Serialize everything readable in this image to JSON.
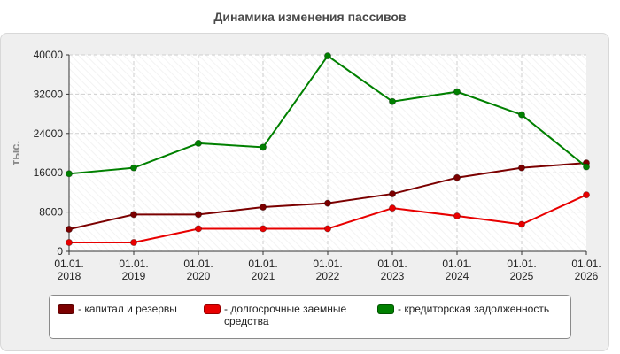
{
  "colors": {
    "capital": "#7b0000",
    "loans": "#e80000",
    "creditors": "#008000"
  },
  "chart_data": {
    "type": "line",
    "title": "Динамика изменения пассивов",
    "ylabel": "тыс.",
    "xlabel": "",
    "ylim": [
      0,
      40000
    ],
    "yticks": [
      "0",
      "8000",
      "16000",
      "24000",
      "32000",
      "40000"
    ],
    "categories": [
      [
        "01.01.",
        "2018"
      ],
      [
        "01.01.",
        "2019"
      ],
      [
        "01.01.",
        "2020"
      ],
      [
        "01.01.",
        "2021"
      ],
      [
        "01.01.",
        "2022"
      ],
      [
        "01.01.",
        "2023"
      ],
      [
        "01.01.",
        "2024"
      ],
      [
        "01.01.",
        "2025"
      ],
      [
        "01.01.",
        "2026"
      ]
    ],
    "grid": true,
    "legend_position": "bottom",
    "series": [
      {
        "name": "- капитал и резервы",
        "color_key": "capital",
        "values": [
          4500,
          7500,
          7500,
          9000,
          9800,
          11700,
          15000,
          17000,
          18000
        ]
      },
      {
        "name": "- долгосрочные заемные средства",
        "color_key": "loans",
        "values": [
          1800,
          1800,
          4600,
          4600,
          4600,
          8800,
          7200,
          5500,
          11500
        ]
      },
      {
        "name": "- кредиторская задолженность",
        "color_key": "creditors",
        "values": [
          15800,
          17000,
          22000,
          21200,
          39800,
          30500,
          32500,
          27800,
          17200
        ]
      }
    ]
  }
}
